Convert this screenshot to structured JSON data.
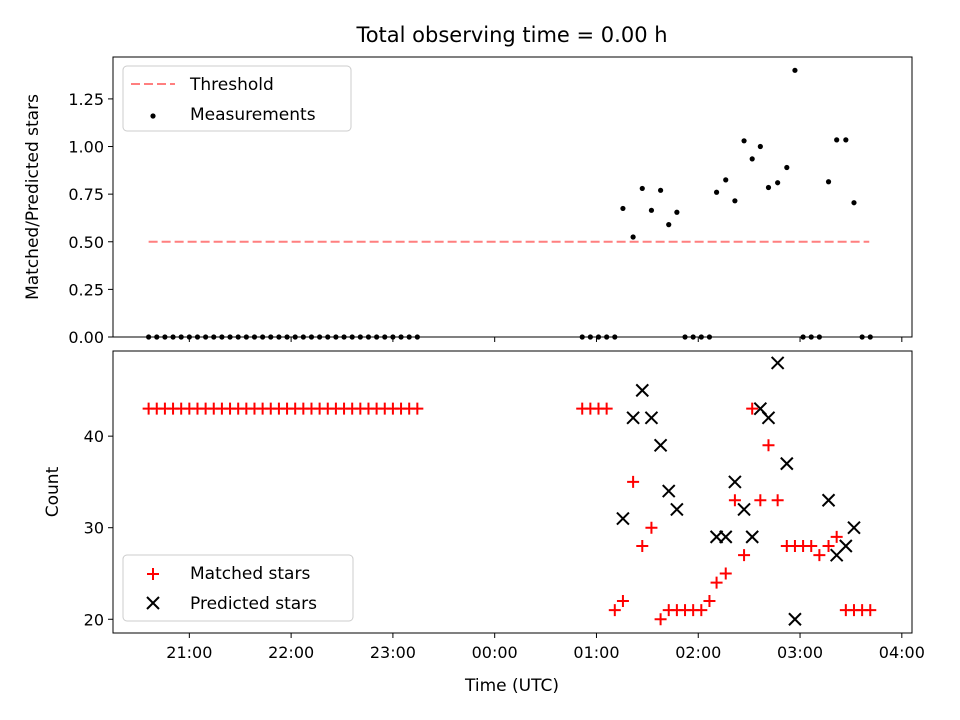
{
  "chart_data": [
    {
      "type": "scatter",
      "title": "Total observing time = 0.00 h",
      "xlabel": "",
      "ylabel": "Matched/Predicted stars",
      "xlim": [
        -3.75,
        4.1
      ],
      "ylim": [
        0,
        1.47
      ],
      "x_ticks": [
        -3,
        -2,
        -1,
        0,
        1,
        2,
        3,
        4
      ],
      "y_ticks": [
        0,
        0.25,
        0.5,
        0.75,
        1.0,
        1.25
      ],
      "y_tick_labels": [
        "0.00",
        "0.25",
        "0.50",
        "0.75",
        "1.00",
        "1.25"
      ],
      "legend": {
        "position": "upper-left",
        "entries": [
          "Threshold",
          "Measurements"
        ]
      },
      "threshold": {
        "name": "Threshold",
        "y": 0.5,
        "x_range": [
          -3.4,
          3.68
        ],
        "color": "#ff7f7f"
      },
      "series": [
        {
          "name": "Measurements",
          "color": "#000000",
          "x": [
            -3.4,
            -3.32,
            -3.24,
            -3.16,
            -3.08,
            -3.0,
            -2.92,
            -2.84,
            -2.76,
            -2.68,
            -2.6,
            -2.52,
            -2.44,
            -2.36,
            -2.28,
            -2.2,
            -2.12,
            -2.04,
            -1.96,
            -1.88,
            -1.8,
            -1.72,
            -1.64,
            -1.56,
            -1.48,
            -1.4,
            -1.32,
            -1.24,
            -1.16,
            -1.08,
            -1.0,
            -0.92,
            -0.84,
            -0.76,
            0.86,
            0.94,
            1.02,
            1.1,
            1.18,
            1.26,
            1.36,
            1.45,
            1.54,
            1.63,
            1.71,
            1.79,
            1.87,
            1.95,
            2.03,
            2.11,
            2.18,
            2.27,
            2.36,
            2.45,
            2.53,
            2.61,
            2.69,
            2.78,
            2.87,
            2.95,
            3.03,
            3.11,
            3.19,
            3.28,
            3.36,
            3.45,
            3.53,
            3.61,
            3.69
          ],
          "y": [
            0,
            0,
            0,
            0,
            0,
            0,
            0,
            0,
            0,
            0,
            0,
            0,
            0,
            0,
            0,
            0,
            0,
            0,
            0,
            0,
            0,
            0,
            0,
            0,
            0,
            0,
            0,
            0,
            0,
            0,
            0,
            0,
            0,
            0,
            0,
            0,
            0,
            0,
            0,
            0.675,
            0.525,
            0.78,
            0.665,
            0.77,
            0.59,
            0.655,
            0,
            0,
            0,
            0,
            0.76,
            0.825,
            0.715,
            1.03,
            0.935,
            1.0,
            0.785,
            0.81,
            0.89,
            1.4,
            0,
            0,
            0,
            0.815,
            1.035,
            1.035,
            0.705,
            0,
            0
          ]
        }
      ]
    },
    {
      "type": "scatter",
      "title": "",
      "xlabel": "Time (UTC)",
      "ylabel": "Count",
      "xlim": [
        -3.75,
        4.1
      ],
      "ylim": [
        18.5,
        49.3
      ],
      "x_ticks": [
        -3,
        -2,
        -1,
        0,
        1,
        2,
        3,
        4
      ],
      "x_tick_labels": [
        "21:00",
        "22:00",
        "23:00",
        "00:00",
        "01:00",
        "02:00",
        "03:00",
        "04:00"
      ],
      "y_ticks": [
        20,
        30,
        40
      ],
      "y_tick_labels": [
        "20",
        "30",
        "40"
      ],
      "legend": {
        "position": "lower-left",
        "entries": [
          "Matched stars",
          "Predicted stars"
        ]
      },
      "series": [
        {
          "name": "Matched stars",
          "marker": "plus",
          "color": "#ff0000",
          "x": [
            -3.4,
            -3.32,
            -3.24,
            -3.16,
            -3.08,
            -3.0,
            -2.92,
            -2.84,
            -2.76,
            -2.68,
            -2.6,
            -2.52,
            -2.44,
            -2.36,
            -2.28,
            -2.2,
            -2.12,
            -2.04,
            -1.96,
            -1.88,
            -1.8,
            -1.72,
            -1.64,
            -1.56,
            -1.48,
            -1.4,
            -1.32,
            -1.24,
            -1.16,
            -1.08,
            -1.0,
            -0.92,
            -0.84,
            -0.76,
            0.86,
            0.94,
            1.02,
            1.1,
            1.18,
            1.26,
            1.36,
            1.45,
            1.54,
            1.63,
            1.71,
            1.79,
            1.87,
            1.95,
            2.03,
            2.11,
            2.18,
            2.27,
            2.36,
            2.45,
            2.53,
            2.61,
            2.69,
            2.78,
            2.87,
            2.95,
            3.03,
            3.11,
            3.19,
            3.28,
            3.36,
            3.45,
            3.53,
            3.61,
            3.69
          ],
          "y": [
            43,
            43,
            43,
            43,
            43,
            43,
            43,
            43,
            43,
            43,
            43,
            43,
            43,
            43,
            43,
            43,
            43,
            43,
            43,
            43,
            43,
            43,
            43,
            43,
            43,
            43,
            43,
            43,
            43,
            43,
            43,
            43,
            43,
            43,
            43,
            43,
            43,
            43,
            21,
            22,
            35,
            28,
            30,
            20,
            21,
            21,
            21,
            21,
            21,
            22,
            24,
            25,
            33,
            27,
            43,
            33,
            39,
            33,
            28,
            28,
            28,
            28,
            27,
            28,
            29,
            21,
            21,
            21,
            21
          ]
        },
        {
          "name": "Predicted stars",
          "marker": "x",
          "color": "#000000",
          "x": [
            1.26,
            1.36,
            1.45,
            1.54,
            1.63,
            1.71,
            1.79,
            2.18,
            2.27,
            2.36,
            2.45,
            2.53,
            2.61,
            2.69,
            2.78,
            2.87,
            2.95,
            3.28,
            3.36,
            3.45,
            3.53
          ],
          "y": [
            31,
            42,
            45,
            42,
            39,
            34,
            32,
            29,
            29,
            35,
            32,
            29,
            43,
            42,
            48,
            37,
            20,
            33,
            27,
            28,
            30
          ]
        }
      ]
    }
  ]
}
